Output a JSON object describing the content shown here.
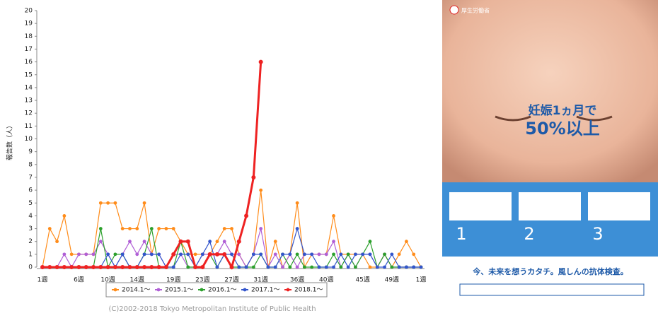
{
  "chart_data": {
    "type": "line",
    "y_label": "報告数（人）",
    "categories": [
      "1週",
      null,
      null,
      null,
      null,
      "6週",
      null,
      null,
      null,
      "10週",
      null,
      null,
      null,
      "14週",
      null,
      null,
      null,
      null,
      "19週",
      null,
      null,
      null,
      "23週",
      null,
      null,
      null,
      "27週",
      null,
      null,
      null,
      "31週",
      null,
      null,
      null,
      null,
      "36週",
      null,
      null,
      null,
      "40週",
      null,
      null,
      null,
      null,
      "45週",
      null,
      null,
      null,
      "49週",
      null,
      null,
      null,
      "1週"
    ],
    "series": [
      {
        "name": "2014.1～",
        "color": "#ff8c1a",
        "values": [
          0,
          3,
          2,
          4,
          1,
          1,
          1,
          1,
          5,
          5,
          5,
          3,
          3,
          3,
          5,
          1,
          3,
          3,
          3,
          2,
          1,
          1,
          1,
          1,
          2,
          3,
          3,
          1,
          0,
          1,
          6,
          0,
          2,
          0,
          1,
          5,
          0,
          1,
          1,
          1,
          4,
          1,
          1,
          1,
          1,
          0,
          0,
          1,
          0,
          1,
          2,
          1,
          0
        ]
      },
      {
        "name": "2015.1～",
        "color": "#b05fd6",
        "values": [
          0,
          0,
          0,
          1,
          0,
          1,
          1,
          1,
          2,
          1,
          0,
          1,
          2,
          1,
          2,
          1,
          1,
          0,
          1,
          1,
          0,
          0,
          1,
          1,
          1,
          2,
          1,
          1,
          0,
          1,
          3,
          0,
          1,
          0,
          1,
          0,
          1,
          1,
          1,
          1,
          2,
          0,
          1,
          0,
          1,
          1,
          0,
          1,
          0,
          0,
          0,
          0,
          0
        ]
      },
      {
        "name": "2016.1～",
        "color": "#2ca02c",
        "values": [
          0,
          0,
          0,
          0,
          0,
          0,
          0,
          0,
          3,
          0,
          1,
          1,
          0,
          0,
          1,
          3,
          0,
          0,
          0,
          2,
          0,
          0,
          0,
          1,
          0,
          1,
          0,
          0,
          0,
          0,
          1,
          0,
          0,
          1,
          0,
          1,
          0,
          0,
          0,
          0,
          1,
          0,
          1,
          0,
          1,
          2,
          0,
          1,
          0,
          0,
          0,
          0,
          0
        ]
      },
      {
        "name": "2017.1～",
        "color": "#3355cc",
        "values": [
          0,
          0,
          0,
          0,
          0,
          0,
          0,
          0,
          0,
          1,
          0,
          1,
          0,
          0,
          1,
          1,
          1,
          0,
          0,
          1,
          1,
          0,
          1,
          2,
          0,
          1,
          1,
          0,
          0,
          1,
          1,
          0,
          0,
          1,
          1,
          3,
          1,
          1,
          0,
          0,
          0,
          1,
          0,
          1,
          1,
          1,
          0,
          0,
          1,
          0,
          0,
          0,
          0
        ]
      },
      {
        "name": "2018.1～",
        "color": "#ee2222",
        "values": [
          0,
          0,
          0,
          0,
          0,
          0,
          0,
          0,
          0,
          0,
          0,
          0,
          0,
          0,
          0,
          0,
          0,
          0,
          1,
          2,
          2,
          0,
          0,
          1,
          1,
          1,
          0,
          2,
          4,
          7,
          16,
          null,
          null,
          null,
          null,
          null,
          null,
          null,
          null,
          null,
          null,
          null,
          null,
          null,
          null,
          null,
          null,
          null,
          null,
          null,
          null,
          null,
          null
        ]
      }
    ],
    "ylim": [
      0,
      20
    ],
    "yticks": [
      0,
      1,
      2,
      3,
      4,
      5,
      6,
      7,
      8,
      9,
      10,
      11,
      12,
      13,
      14,
      15,
      16,
      17,
      18,
      19,
      20
    ],
    "grid": false,
    "source": "(C)2002-2018 Tokyo Metropolitan Institute of Public Health"
  },
  "poster": {
    "logo": "厚生労働省",
    "headline": [
      "妊娠1ヵ月で",
      "50%以上"
    ],
    "steps": [
      "1",
      "2",
      "3"
    ],
    "tagline": "今、未来を想うカタチ。風しんの抗体検査。"
  }
}
